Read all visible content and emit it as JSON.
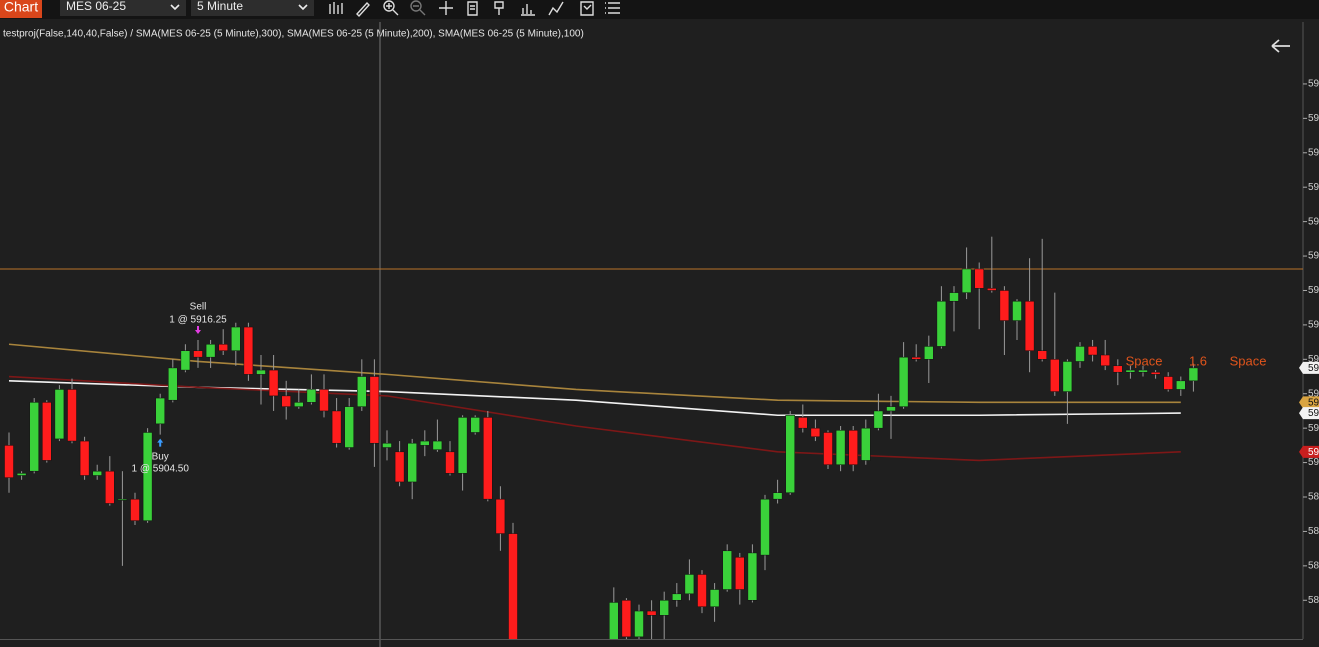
{
  "toolbar": {
    "tab": "Chart",
    "instrument": "MES 06-25",
    "interval": "5 Minute"
  },
  "chart_data": {
    "type": "candlestick",
    "indicator_label": "testproj(False,140,40,False) / SMA(MES 06-25 (5 Minute),300), SMA(MES 06-25 (5 Minute),200), SMA(MES 06-25 (5 Minute),100)",
    "open": [
      5902,
      5898.5,
      5899,
      5907,
      5902.75,
      5908.5,
      5902.5,
      5898.5,
      5899,
      5895.75,
      5895.75,
      5893.25,
      5904.5,
      5907.25,
      5910.75,
      5913,
      5912.25,
      5913.75,
      5913,
      5915.75,
      5910.25,
      5910.75,
      5907.75,
      5906.5,
      5907,
      5908.5,
      5906,
      5901.75,
      5906.5,
      5910,
      5901.75,
      5901.25,
      5897.75,
      5902,
      5901.5,
      5901.25,
      5898.75,
      5903.5,
      5905.25,
      5895.75,
      5891.75,
      null,
      null,
      null,
      null,
      null,
      null,
      null,
      5879.25,
      5884,
      5879.75,
      5882.75,
      5882.25,
      5884,
      5884.75,
      5887,
      5883.25,
      5885.25,
      5889,
      5884,
      5889.25,
      5895.75,
      5896.5,
      5905.25,
      5904,
      5903.5,
      5899.75,
      5903.75,
      5900.25,
      5904,
      5906,
      5906.5,
      5912.25,
      5912,
      5913.5,
      5918.75,
      5919.75,
      5922.5,
      5920.25,
      5920,
      5916.5,
      5918.75,
      5913,
      5912,
      5908.25,
      5911.75,
      5913.5,
      5912.5,
      5911.25,
      5910.5,
      5910.5,
      5910.5,
      5910,
      5908.5,
      5909.5
    ],
    "high": [
      5903.5,
      5899,
      5907.5,
      5907.25,
      5909,
      5909.75,
      5903,
      5899.75,
      5900.75,
      5899,
      5896.5,
      5904,
      5908,
      5912,
      5913.75,
      5914.25,
      5914.25,
      5915.5,
      5916.25,
      5916.25,
      5912.5,
      5912.5,
      5909.5,
      5908.5,
      5910.25,
      5910.25,
      5907.5,
      5907.5,
      5912,
      5912,
      5903.75,
      5902.5,
      5902.75,
      5903.75,
      5905,
      5902.5,
      5905.5,
      5905.5,
      5906,
      5897.25,
      5893,
      null,
      null,
      null,
      null,
      null,
      null,
      null,
      5885.5,
      5884.25,
      5883.5,
      5884,
      5885,
      5886,
      5888.75,
      5887.5,
      5886,
      5890.5,
      5889.5,
      5890.5,
      5896.25,
      5898,
      5906,
      5906.75,
      5905,
      5903.75,
      5904.25,
      5904.25,
      5905,
      5908,
      5907.75,
      5914,
      5913.75,
      5914.75,
      5920.5,
      5920.5,
      5925,
      5923.25,
      5926.25,
      5920.5,
      5919,
      5923.75,
      5926,
      5919.75,
      5912,
      5914,
      5914.25,
      5914.25,
      5912,
      5911.25,
      5911.25,
      5910.75,
      5910.5,
      5910,
      5911.5
    ],
    "low": [
      5896.5,
      5898,
      5898.75,
      5900,
      5902.5,
      5902.25,
      5898,
      5898,
      5895,
      5888,
      5892.75,
      5893,
      5903.25,
      5907,
      5910.5,
      5911,
      5911,
      5912.5,
      5911.25,
      5909.5,
      5906.75,
      5906,
      5905,
      5906.25,
      5906.75,
      5905.25,
      5901.75,
      5901.5,
      5906,
      5899.5,
      5900.25,
      5897.25,
      5895.75,
      5900.75,
      5901.25,
      5898.5,
      5896.75,
      5903.25,
      5895.5,
      5889.75,
      5879,
      null,
      null,
      null,
      null,
      null,
      null,
      null,
      5879,
      5879.25,
      5879.25,
      5879.5,
      5879.25,
      5883.25,
      5884,
      5882.5,
      5881.5,
      5885,
      5883.5,
      5883.75,
      5887.5,
      5895.25,
      5896.25,
      5903.5,
      5902.5,
      5899.25,
      5899,
      5899,
      5899.75,
      5903.75,
      5902.75,
      5906.25,
      5911.75,
      5909.25,
      5913.25,
      5915.25,
      5919,
      5915.5,
      5919.75,
      5912.5,
      5914.25,
      5910.5,
      5911.75,
      5907.75,
      5904.5,
      5911,
      5911.75,
      5910.75,
      5909,
      5909.75,
      5910,
      5909.75,
      5908.25,
      5907.75,
      5908.25
    ],
    "close": [
      5898.25,
      5898.75,
      5907,
      5900.25,
      5908.5,
      5902.5,
      5898.5,
      5899,
      5895.25,
      5895.75,
      5893.25,
      5903.5,
      5907.5,
      5911,
      5913,
      5912.25,
      5913.75,
      5913,
      5915.75,
      5910.25,
      5910.75,
      5907.75,
      5906.5,
      5907,
      5908.5,
      5906,
      5902.25,
      5906.5,
      5910,
      5902.25,
      5902.25,
      5897.75,
      5902.25,
      5902.5,
      5902.5,
      5898.75,
      5905.25,
      5905.25,
      5895.75,
      5891.75,
      5879.25,
      null,
      null,
      null,
      null,
      null,
      null,
      null,
      5883.75,
      5879.75,
      5882.75,
      5882.25,
      5884,
      5884.75,
      5887,
      5883.25,
      5885.25,
      5889.75,
      5885.25,
      5889.5,
      5895.75,
      5896.5,
      5905.5,
      5904,
      5903,
      5899.75,
      5903.75,
      5899.75,
      5904,
      5906,
      5906.5,
      5912.25,
      5912,
      5913.5,
      5918.75,
      5919.75,
      5922.5,
      5920.25,
      5920,
      5916.5,
      5918.75,
      5913,
      5912,
      5908.25,
      5911.75,
      5913.5,
      5912.5,
      5911.25,
      5910.5,
      5910.75,
      5910.75,
      5910.25,
      5908.5,
      5909.5,
      5911
    ],
    "up_color": "#3ad13a",
    "down_color": "#ff1c1c",
    "wick_color": "#9a9a9a",
    "ylim": [
      5879.5,
      5950.5
    ],
    "yticks": [
      {
        "value": 5944,
        "label": "59"
      },
      {
        "value": 5940,
        "label": "59"
      },
      {
        "value": 5936,
        "label": "59"
      },
      {
        "value": 5932,
        "label": "59"
      },
      {
        "value": 5928,
        "label": "59"
      },
      {
        "value": 5924,
        "label": "59"
      },
      {
        "value": 5920,
        "label": "59"
      },
      {
        "value": 5916,
        "label": "59"
      },
      {
        "value": 5912,
        "label": "59"
      },
      {
        "value": 5908,
        "label": "59"
      },
      {
        "value": 5904,
        "label": "59"
      },
      {
        "value": 5900,
        "label": "59"
      },
      {
        "value": 5896,
        "label": "58"
      },
      {
        "value": 5892,
        "label": "58"
      },
      {
        "value": 5888,
        "label": "58"
      },
      {
        "value": 5884,
        "label": "58"
      }
    ],
    "lines": [
      {
        "color": "#a8843c",
        "x": [
          0,
          15,
          30,
          45,
          61,
          77,
          93
        ],
        "values": [
          5913.75,
          5911.75,
          5910.25,
          5908.5,
          5907.25,
          5907,
          5907
        ]
      },
      {
        "color": "#f2f2f2",
        "x": [
          0,
          15,
          30,
          45,
          61,
          77,
          93
        ],
        "values": [
          5909.5,
          5908.75,
          5908.25,
          5907.25,
          5905.5,
          5905.5,
          5905.75
        ]
      },
      {
        "color": "#7d1717",
        "x": [
          0,
          15,
          30,
          45,
          61,
          77,
          93
        ],
        "values": [
          5910,
          5908.75,
          5907.75,
          5904.25,
          5901.25,
          5900.25,
          5901.25
        ]
      }
    ],
    "horizontal_line": {
      "value": 5922.5,
      "color": "#b8732a"
    },
    "price_markers": [
      {
        "value": 5911,
        "label": "59",
        "color": "#f2f2f2"
      },
      {
        "value": 5907,
        "label": "59",
        "color": "#d9a441"
      },
      {
        "value": 5905.75,
        "label": "59",
        "color": "#f2f2f2"
      },
      {
        "value": 5901.25,
        "label": "59",
        "color": "#c81e1e"
      }
    ],
    "trades": [
      {
        "index": 12,
        "side": "Buy",
        "fill": "1 @ 5904.50",
        "color": "#3a9cff"
      },
      {
        "index": 15,
        "side": "Sell",
        "fill": "1 @ 5916.25",
        "color": "#e23de2"
      }
    ],
    "annotations": [
      "Space",
      "1.6",
      "Space"
    ],
    "annotation_color": "#e0541c"
  }
}
